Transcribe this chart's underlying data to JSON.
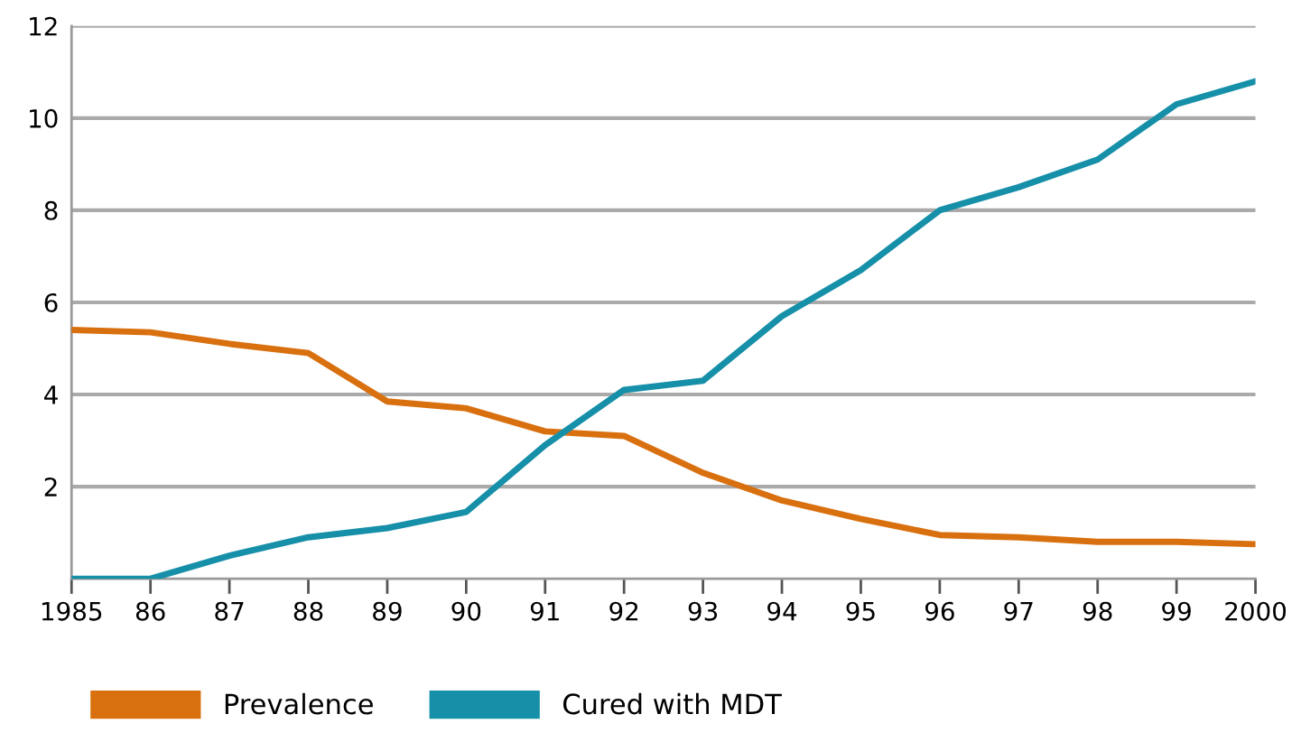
{
  "chart_data": {
    "type": "line",
    "x": [
      1985,
      1986,
      1987,
      1988,
      1989,
      1990,
      1991,
      1992,
      1993,
      1994,
      1995,
      1996,
      1997,
      1998,
      1999,
      2000
    ],
    "series": [
      {
        "name": "Prevalence",
        "color": "#d9700f",
        "values": [
          5.4,
          5.35,
          5.1,
          4.9,
          3.85,
          3.7,
          3.2,
          3.1,
          2.3,
          1.7,
          1.3,
          0.95,
          0.9,
          0.8,
          0.8,
          0.75
        ]
      },
      {
        "name": "Cured with MDT",
        "color": "#168fa8",
        "values": [
          0,
          0,
          0.5,
          0.9,
          1.1,
          1.45,
          2.9,
          4.1,
          4.3,
          5.7,
          6.7,
          8.0,
          8.5,
          9.1,
          10.3,
          10.8
        ]
      }
    ],
    "xlim": [
      1985,
      2000
    ],
    "xticks": [
      {
        "value": 1985,
        "label": "1985"
      },
      {
        "value": 1986,
        "label": "86"
      },
      {
        "value": 1987,
        "label": "87"
      },
      {
        "value": 1988,
        "label": "88"
      },
      {
        "value": 1989,
        "label": "89"
      },
      {
        "value": 1990,
        "label": "90"
      },
      {
        "value": 1991,
        "label": "91"
      },
      {
        "value": 1992,
        "label": "92"
      },
      {
        "value": 1993,
        "label": "93"
      },
      {
        "value": 1994,
        "label": "94"
      },
      {
        "value": 1995,
        "label": "95"
      },
      {
        "value": 1996,
        "label": "96"
      },
      {
        "value": 1997,
        "label": "97"
      },
      {
        "value": 1998,
        "label": "98"
      },
      {
        "value": 1999,
        "label": "99"
      },
      {
        "value": 2000,
        "label": "2000"
      }
    ],
    "ylim": [
      0,
      12
    ],
    "yticks": [
      2,
      4,
      6,
      8,
      10,
      12
    ],
    "grid": "y",
    "legend": "bottom left",
    "marker": "none",
    "line_style": "solid"
  }
}
